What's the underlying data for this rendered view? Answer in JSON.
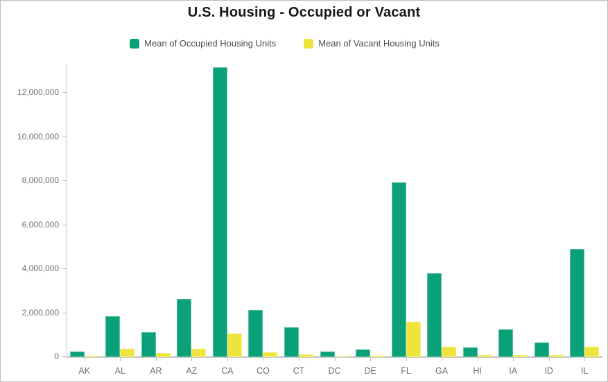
{
  "title": "U.S. Housing - Occupied or Vacant",
  "legend": {
    "items": [
      {
        "label": "Mean of Occupied Housing Units",
        "color": "#0aa078"
      },
      {
        "label": "Mean of Vacant Housing Units",
        "color": "#efe43d"
      }
    ]
  },
  "colors": {
    "occupied": "#0aa078",
    "vacant": "#efe43d",
    "axis_line": "#c4c4c4",
    "tick_text": "#6e6e6e",
    "title_text": "#161616",
    "legend_text": "#4a4a4a"
  },
  "chart_data": {
    "type": "bar",
    "title": "U.S. Housing - Occupied or Vacant",
    "xlabel": "",
    "ylabel": "",
    "grid": false,
    "legend_position": "top",
    "ylim": [
      0,
      13400000
    ],
    "yticks": [
      0,
      2000000,
      4000000,
      6000000,
      8000000,
      10000000,
      12000000
    ],
    "ytick_labels": [
      "0",
      "2,000,000",
      "4,000,000",
      "6,000,000",
      "8,000,000",
      "10,000,000",
      "12,000,000"
    ],
    "categories": [
      "AK",
      "AL",
      "AR",
      "AZ",
      "CA",
      "CO",
      "CT",
      "DC",
      "DE",
      "FL",
      "GA",
      "HI",
      "IA",
      "ID",
      "IL"
    ],
    "series": [
      {
        "name": "Mean of Occupied Housing Units",
        "color": "#0aa078",
        "values": [
          250000,
          1870000,
          1140000,
          2650000,
          13150000,
          2150000,
          1360000,
          260000,
          340000,
          7950000,
          3820000,
          450000,
          1270000,
          650000,
          4900000
        ]
      },
      {
        "name": "Mean of Vacant Housing Units",
        "color": "#efe43d",
        "values": [
          60000,
          370000,
          180000,
          370000,
          1080000,
          220000,
          140000,
          45000,
          65000,
          1600000,
          470000,
          80000,
          110000,
          80000,
          460000
        ]
      }
    ]
  }
}
